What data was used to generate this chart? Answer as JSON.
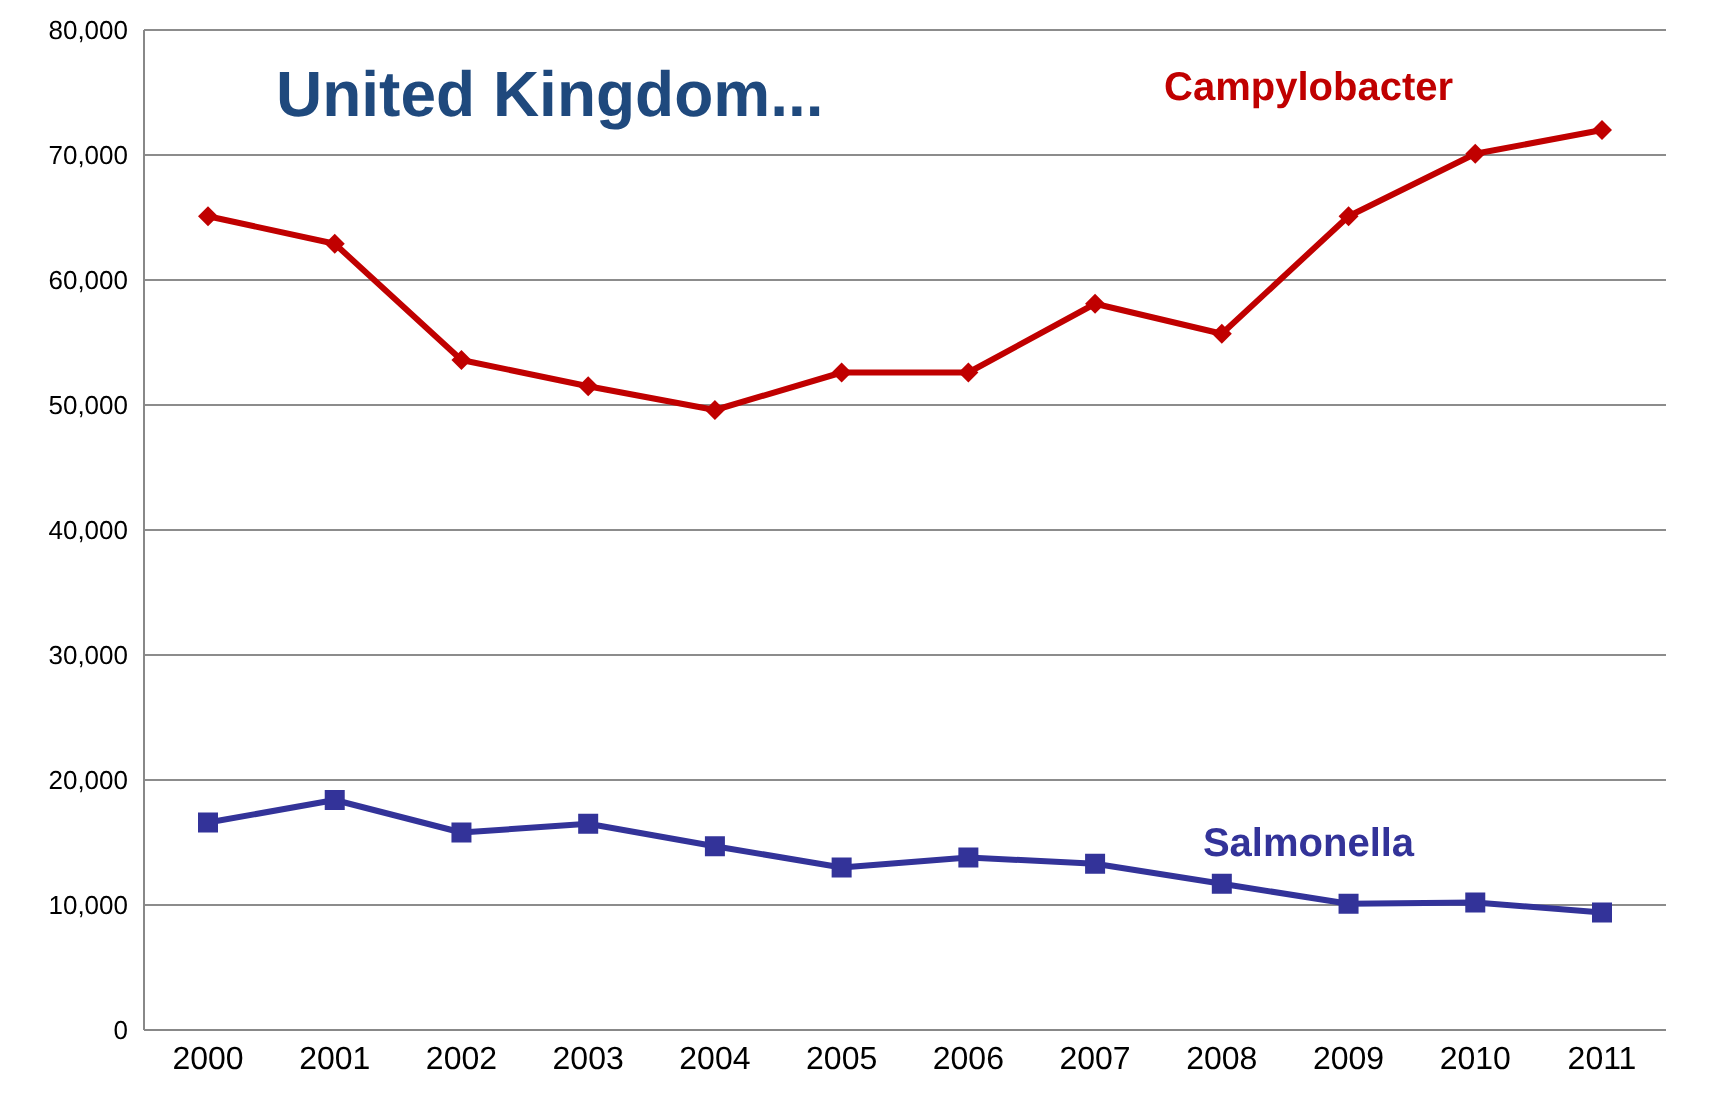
{
  "chart_data": {
    "type": "line",
    "title": "United Kingdom...",
    "categories": [
      "2000",
      "2001",
      "2002",
      "2003",
      "2004",
      "2005",
      "2006",
      "2007",
      "2008",
      "2009",
      "2010",
      "2011"
    ],
    "series": [
      {
        "name": "Campylobacter",
        "color": "#c00000",
        "marker": "diamond",
        "values": [
          65100,
          62900,
          53600,
          51500,
          49600,
          52600,
          52600,
          58100,
          55700,
          65100,
          70100,
          72000
        ]
      },
      {
        "name": "Salmonella",
        "color": "#333399",
        "marker": "square",
        "values": [
          16600,
          18400,
          15800,
          16500,
          14700,
          13000,
          13800,
          13300,
          11700,
          10100,
          10200,
          9400
        ]
      }
    ],
    "ylim": [
      0,
      80000
    ],
    "yticks": [
      0,
      {
        "value": 10000,
        "label": "10,000"
      },
      {
        "value": 20000,
        "label": "20,000"
      },
      {
        "value": 30000,
        "label": "30,000"
      },
      {
        "value": 40000,
        "label": "40,000"
      },
      {
        "value": 50000,
        "label": "50,000"
      },
      {
        "value": 60000,
        "label": "60,000"
      },
      {
        "value": 70000,
        "label": "70,000"
      },
      {
        "value": 80000,
        "label": "80,000"
      }
    ],
    "grid": "y",
    "line_style": "solid"
  }
}
